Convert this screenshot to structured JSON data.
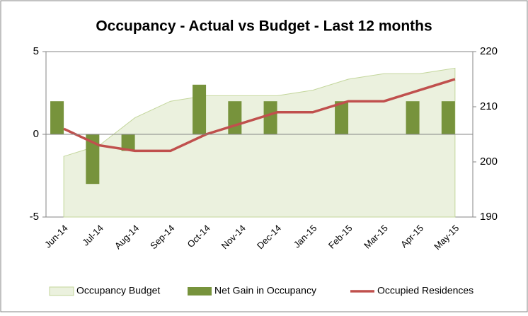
{
  "chart_data": {
    "type": "combo",
    "title": "Occupancy - Actual vs Budget - Last 12 months",
    "categories": [
      "Jun-14",
      "Jul-14",
      "Aug-14",
      "Sep-14",
      "Oct-14",
      "Nov-14",
      "Dec-14",
      "Jan-15",
      "Feb-15",
      "Mar-15",
      "Apr-15",
      "May-15"
    ],
    "series": [
      {
        "name": "Occupancy Budget",
        "type": "area",
        "axis": "y2",
        "color": "#ebf1de",
        "values": [
          201,
          203,
          208,
          211,
          212,
          212,
          212,
          213,
          215,
          216,
          216,
          217
        ]
      },
      {
        "name": "Net Gain in Occupancy",
        "type": "bar",
        "color": "#77933c",
        "values": [
          2,
          -3,
          -1,
          0,
          3,
          2,
          2,
          0,
          2,
          0,
          2,
          2
        ]
      },
      {
        "name": "Occupied Residences",
        "type": "line",
        "axis": "y2",
        "color": "#c0504d",
        "values": [
          206,
          203,
          202,
          202,
          205,
          207,
          209,
          209,
          211,
          211,
          213,
          215
        ]
      }
    ],
    "ylim": [
      -5,
      5
    ],
    "yticks": [
      -5,
      0,
      5
    ],
    "y2lim": [
      190,
      220
    ],
    "y2ticks": [
      190,
      200,
      210,
      220
    ],
    "legend": "bottom"
  }
}
